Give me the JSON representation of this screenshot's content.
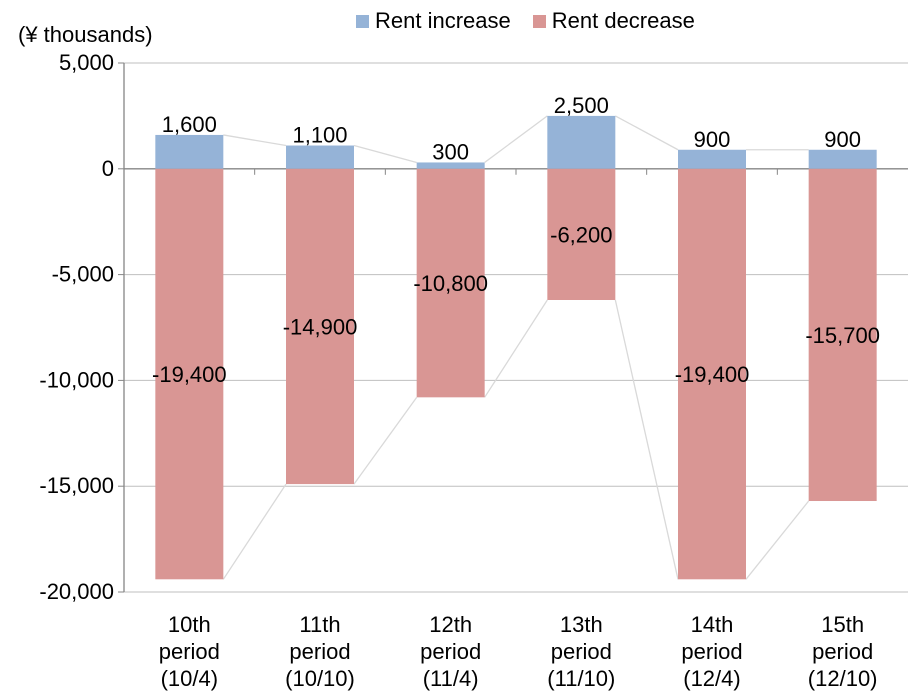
{
  "chart_data": {
    "type": "bar",
    "stacked": true,
    "unit_label": "(¥ thousands)",
    "categories": [
      [
        "10th",
        "period",
        "(10/4)"
      ],
      [
        "11th",
        "period",
        "(10/10)"
      ],
      [
        "12th",
        "period",
        "(11/4)"
      ],
      [
        "13th",
        "period",
        "(11/10)"
      ],
      [
        "14th",
        "period",
        "(12/4)"
      ],
      [
        "15th",
        "period",
        "(12/10)"
      ]
    ],
    "series": [
      {
        "name": "Rent increase",
        "color": "#95b3d7",
        "values": [
          1600,
          1100,
          300,
          2500,
          900,
          900
        ],
        "labels": [
          "1,600",
          "1,100",
          "300",
          "2,500",
          "900",
          "900"
        ]
      },
      {
        "name": "Rent decrease",
        "color": "#d99694",
        "values": [
          -19400,
          -14900,
          -10800,
          -6200,
          -19400,
          -15700
        ],
        "labels": [
          "-19,400",
          "-14,900",
          "-10,800",
          "-6,200",
          "-19,400",
          "-15,700"
        ]
      }
    ],
    "ylim": [
      -20000,
      5000
    ],
    "yticks": [
      5000,
      0,
      -5000,
      -10000,
      -15000,
      -20000
    ],
    "ytick_labels": [
      "5,000",
      "0",
      "-5,000",
      "-10,000",
      "-15,000",
      "-20,000"
    ],
    "gridlines": true,
    "series_lines": true,
    "legend_position": "top"
  }
}
